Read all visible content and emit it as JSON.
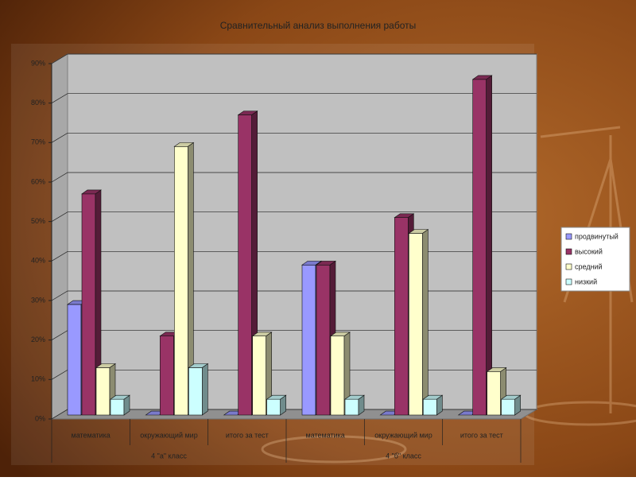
{
  "chart_data": {
    "type": "bar3d",
    "title": "Сравнительный анализ выполнения работы",
    "categories": [
      "математика",
      "окружающий мир",
      "итого за тест",
      "математика",
      "окружающий мир",
      "итого за тест"
    ],
    "category_groups": [
      "4 \"а\" класс",
      "4 \"б\" класс"
    ],
    "series": [
      {
        "name": "продвинутый",
        "color": "#9999ff",
        "values": [
          28,
          0,
          0,
          38,
          0,
          0
        ]
      },
      {
        "name": "высокий",
        "color": "#993366",
        "values": [
          56,
          20,
          76,
          38,
          50,
          85
        ]
      },
      {
        "name": "средний",
        "color": "#ffffcc",
        "values": [
          12,
          68,
          20,
          20,
          46,
          11
        ]
      },
      {
        "name": "низкий",
        "color": "#ccffff",
        "values": [
          4,
          12,
          4,
          4,
          4,
          4
        ]
      }
    ],
    "ylim": [
      0,
      90
    ],
    "yticks": [
      {
        "value": 0,
        "label": "0%"
      },
      {
        "value": 10,
        "label": "10%"
      },
      {
        "value": 20,
        "label": "20%"
      },
      {
        "value": 30,
        "label": "30%"
      },
      {
        "value": 40,
        "label": "40%"
      },
      {
        "value": 50,
        "label": "50%"
      },
      {
        "value": 60,
        "label": "60%"
      },
      {
        "value": 70,
        "label": "70%"
      },
      {
        "value": 80,
        "label": "80%"
      },
      {
        "value": 90,
        "label": "90%"
      }
    ],
    "grid": true,
    "legend": "right"
  }
}
